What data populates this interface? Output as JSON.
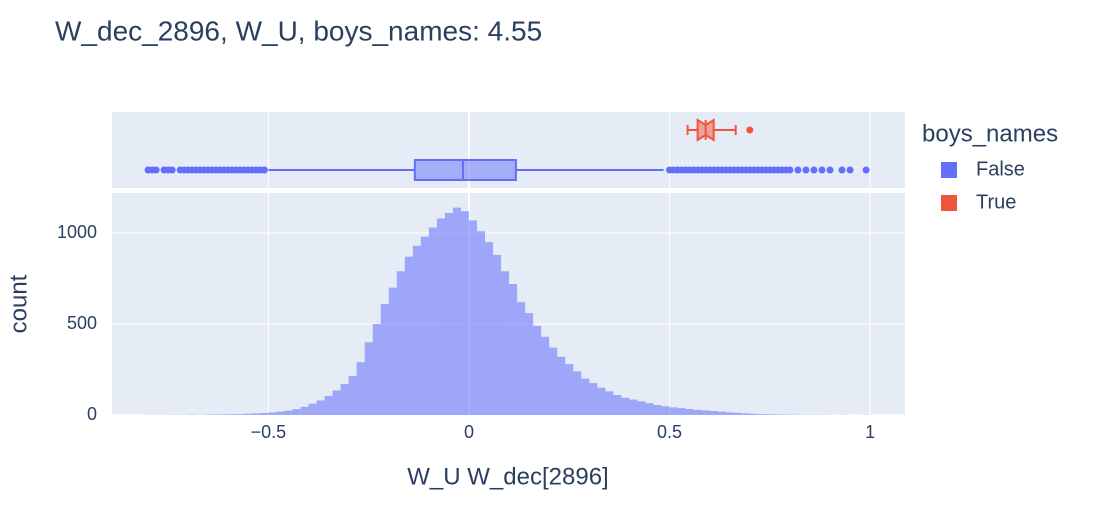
{
  "chart_data": {
    "type": "histogram",
    "title": "W_dec_2896, W_U, boys_names: 4.55",
    "x_label": "W_U W_dec[2896]",
    "y_label": "count",
    "legend_title": "boys_names",
    "legend_position": "right",
    "grid": true,
    "xlim": [
      -0.89,
      1.087
    ],
    "xticks": [
      {
        "value": -0.5,
        "label": "−0.5"
      },
      0,
      0.5,
      1
    ],
    "ylim": [
      0,
      1220
    ],
    "yticks": [
      0,
      500,
      1000
    ],
    "bins": [
      -0.8,
      -0.78,
      -0.76,
      -0.74,
      -0.72,
      -0.7,
      -0.68,
      -0.66,
      -0.64,
      -0.62,
      -0.6,
      -0.58,
      -0.56,
      -0.54,
      -0.52,
      -0.5,
      -0.48,
      -0.46,
      -0.44,
      -0.42,
      -0.4,
      -0.38,
      -0.36,
      -0.34,
      -0.32,
      -0.3,
      -0.28,
      -0.26,
      -0.24,
      -0.22,
      -0.2,
      -0.18,
      -0.16,
      -0.14,
      -0.12,
      -0.1,
      -0.08,
      -0.06,
      -0.04,
      -0.02,
      0,
      0.02,
      0.04,
      0.06,
      0.08,
      0.1,
      0.12,
      0.14,
      0.16,
      0.18,
      0.2,
      0.22,
      0.24,
      0.26,
      0.28,
      0.3,
      0.32,
      0.34,
      0.36,
      0.38,
      0.4,
      0.42,
      0.44,
      0.46,
      0.48,
      0.5,
      0.52,
      0.54,
      0.56,
      0.58,
      0.6,
      0.62,
      0.64,
      0.66,
      0.68,
      0.7,
      0.72,
      0.74,
      0.76,
      0.78,
      0.8,
      0.82,
      0.84,
      0.86,
      0.88,
      0.9,
      0.92,
      0.94,
      0.96,
      0.98,
      1.0
    ],
    "values": [
      1,
      0,
      1,
      1,
      1,
      2,
      1,
      2,
      3,
      3,
      4,
      5,
      7,
      9,
      11,
      14,
      18,
      24,
      32,
      45,
      62,
      80,
      105,
      135,
      170,
      215,
      290,
      400,
      500,
      610,
      700,
      790,
      870,
      930,
      980,
      1030,
      1080,
      1110,
      1140,
      1120,
      1070,
      1010,
      950,
      880,
      790,
      720,
      620,
      560,
      490,
      430,
      370,
      320,
      280,
      240,
      200,
      175,
      150,
      130,
      110,
      95,
      85,
      75,
      65,
      55,
      48,
      42,
      38,
      33,
      28,
      25,
      22,
      18,
      14,
      12,
      9,
      7,
      5,
      4,
      3,
      2,
      2,
      1,
      1,
      1,
      1,
      0,
      1,
      0,
      0,
      1
    ],
    "color": "#636efa",
    "series": [
      {
        "name": "False",
        "color": "#636efa",
        "notched": false,
        "lowerfence": -0.5,
        "q1": -0.135,
        "median": -0.015,
        "q3": 0.117,
        "upperfence": 0.485,
        "outliers": [
          -0.8,
          -0.79,
          -0.78,
          -0.76,
          -0.75,
          -0.74,
          -0.72,
          -0.71,
          -0.7,
          -0.69,
          -0.68,
          -0.67,
          -0.66,
          -0.65,
          -0.64,
          -0.63,
          -0.62,
          -0.61,
          -0.6,
          -0.59,
          -0.58,
          -0.57,
          -0.56,
          -0.55,
          -0.54,
          -0.53,
          -0.52,
          -0.51,
          0.5,
          0.51,
          0.52,
          0.53,
          0.54,
          0.55,
          0.56,
          0.57,
          0.58,
          0.59,
          0.6,
          0.61,
          0.62,
          0.63,
          0.64,
          0.65,
          0.66,
          0.67,
          0.68,
          0.69,
          0.7,
          0.71,
          0.72,
          0.73,
          0.74,
          0.75,
          0.76,
          0.77,
          0.78,
          0.79,
          0.8,
          0.82,
          0.84,
          0.86,
          0.88,
          0.9,
          0.93,
          0.95,
          0.99
        ]
      },
      {
        "name": "True",
        "color": "#EF553B",
        "notched": true,
        "lowerfence": 0.545,
        "q1": 0.57,
        "median": 0.59,
        "q3": 0.61,
        "upperfence": 0.665,
        "outliers": [
          0.7
        ]
      }
    ]
  }
}
